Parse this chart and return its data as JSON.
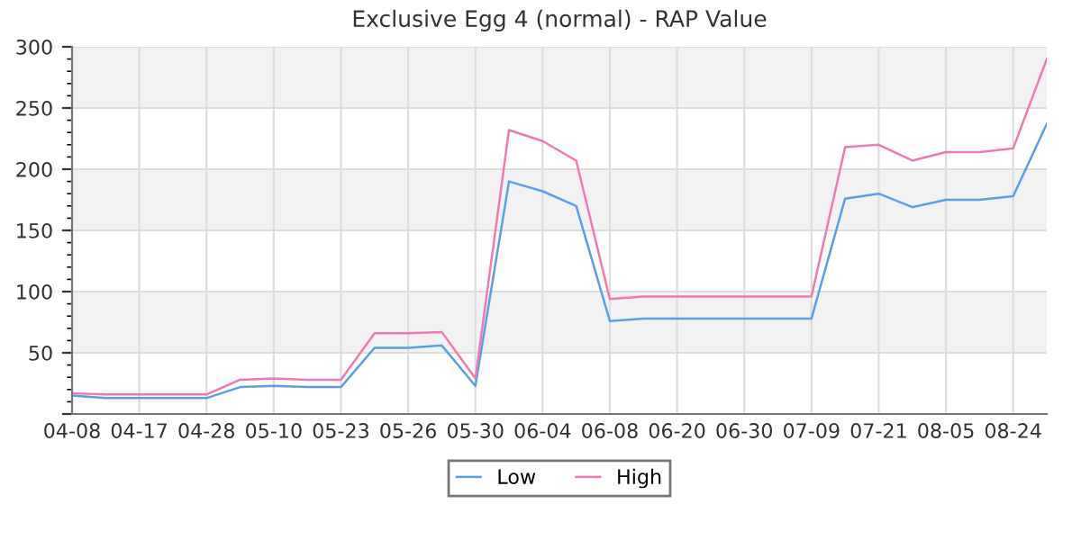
{
  "chart_data": {
    "type": "line",
    "title": "Exclusive Egg 4 (normal) - RAP Value",
    "categories": [
      "04-08",
      null,
      "04-17",
      null,
      "04-28",
      null,
      "05-10",
      null,
      "05-23",
      null,
      "05-26",
      null,
      "05-30",
      null,
      "06-04",
      null,
      "06-08",
      null,
      "06-20",
      null,
      "06-30",
      null,
      "07-09",
      null,
      "07-21",
      null,
      "08-05",
      null,
      "08-24",
      null
    ],
    "series": [
      {
        "name": "Low",
        "color": "#5aa0e6",
        "values": [
          15,
          13,
          13,
          13,
          13,
          22,
          23,
          22,
          22,
          54,
          54,
          56,
          23,
          190,
          182,
          170,
          76,
          78,
          78,
          78,
          78,
          78,
          78,
          176,
          180,
          169,
          175,
          175,
          178,
          237
        ]
      },
      {
        "name": "High",
        "color": "#f07ab4",
        "values": [
          17,
          16,
          16,
          16,
          16,
          28,
          29,
          28,
          28,
          66,
          66,
          67,
          29,
          232,
          223,
          207,
          94,
          96,
          96,
          96,
          96,
          96,
          96,
          218,
          220,
          207,
          214,
          214,
          217,
          290
        ]
      }
    ],
    "ylim": [
      0,
      300
    ],
    "yticks": [
      {
        "value": 0,
        "label": null
      },
      50,
      100,
      150,
      200,
      250,
      300
    ],
    "bands": [
      {
        "axis": "y",
        "from": 50,
        "to": 100,
        "color": "#f2f2f2"
      },
      {
        "axis": "y",
        "from": 150,
        "to": 200,
        "color": "#f2f2f2"
      },
      {
        "axis": "y",
        "from": 250,
        "to": 300,
        "color": "#f2f2f2"
      }
    ],
    "grid": true,
    "legend": "bottom",
    "marker": "none",
    "line_style": "solid"
  }
}
